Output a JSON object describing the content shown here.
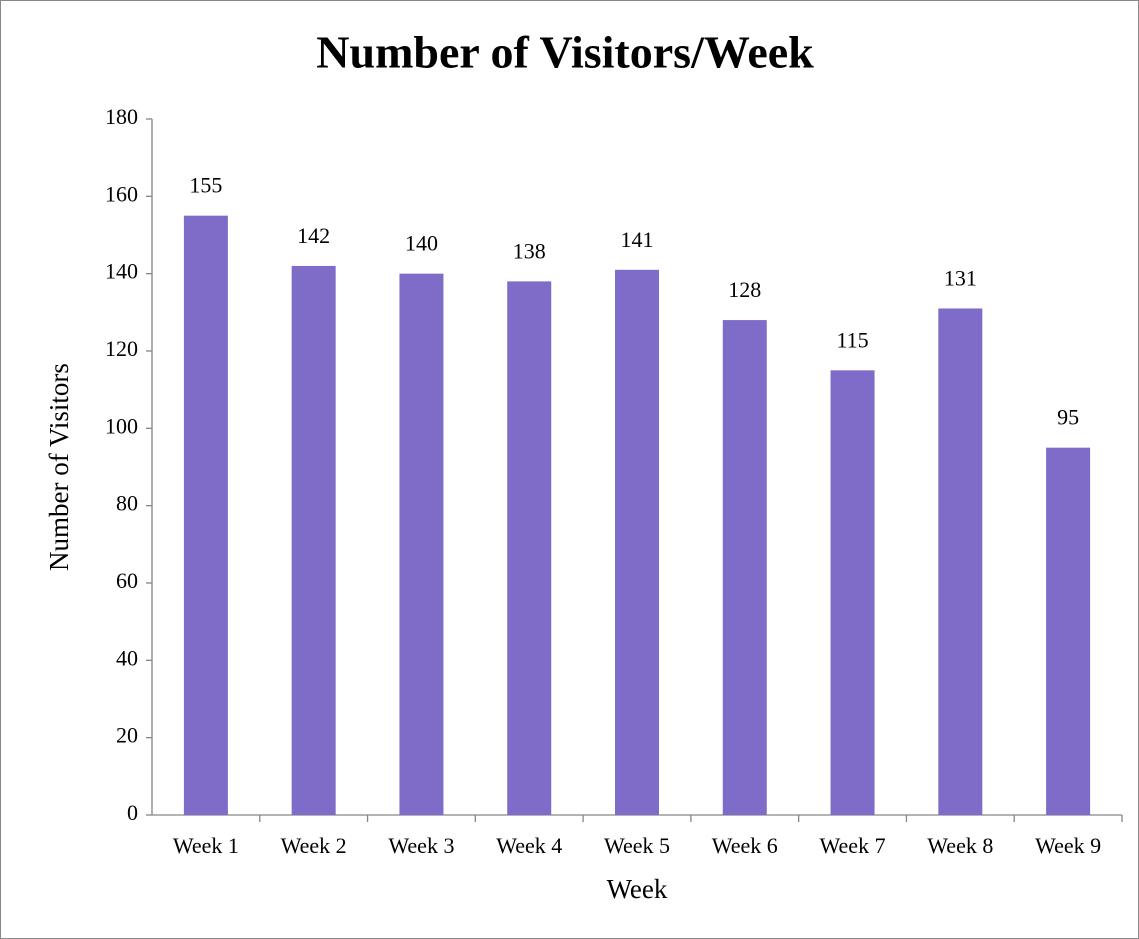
{
  "chart_data": {
    "type": "bar",
    "title": "Number of Visitors/Week",
    "x_label": "Week",
    "y_label": "Number of Visitors",
    "categories": [
      "Week 1",
      "Week 2",
      "Week 3",
      "Week 4",
      "Week 5",
      "Week 6",
      "Week 7",
      "Week 8",
      "Week 9"
    ],
    "values": [
      155,
      142,
      140,
      138,
      141,
      128,
      115,
      131,
      95
    ],
    "color": "#7f6bc8",
    "ylim": [
      0,
      180
    ],
    "yticks": [
      0,
      20,
      40,
      60,
      80,
      100,
      120,
      140,
      160,
      180
    ],
    "grid": false
  }
}
